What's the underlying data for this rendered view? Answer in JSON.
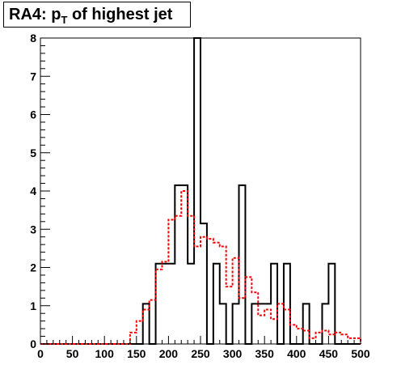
{
  "chart_data": {
    "type": "histogram",
    "title_main": "RA4: p",
    "title_sub": "T",
    "title_rest": " of highest jet",
    "xlim": [
      0,
      500
    ],
    "ylim": [
      0,
      8
    ],
    "xticks": [
      0,
      50,
      100,
      150,
      200,
      250,
      300,
      350,
      400,
      450,
      500
    ],
    "yticks": [
      0,
      1,
      2,
      3,
      4,
      5,
      6,
      7,
      8
    ],
    "bin_width": 10,
    "series": [
      {
        "style": "solid",
        "color": "#000000",
        "values": [
          0,
          0,
          0,
          0,
          0,
          0,
          0,
          0,
          0,
          0,
          0,
          0,
          0,
          0,
          0,
          0,
          1.05,
          0,
          2.1,
          2.1,
          2.1,
          4.15,
          4.15,
          2.1,
          8,
          3.15,
          0,
          2.1,
          1.05,
          0,
          1.05,
          4.15,
          0,
          1.05,
          1.05,
          1.05,
          2.1,
          0,
          2.1,
          0,
          0,
          1.05,
          0,
          0,
          1.05,
          2.1,
          0,
          0,
          0,
          0
        ]
      },
      {
        "style": "dashed",
        "color": "#ff0000",
        "values": [
          0,
          0,
          0,
          0,
          0,
          0,
          0,
          0,
          0,
          0,
          0,
          0,
          0,
          0,
          0.3,
          0.6,
          0.9,
          1.15,
          1.95,
          2.15,
          3.25,
          3.35,
          4.0,
          3.35,
          2.55,
          2.8,
          2.75,
          2.65,
          2.55,
          1.5,
          2.25,
          1.2,
          1.75,
          1.35,
          0.75,
          0.9,
          0.65,
          1.05,
          0.9,
          0.5,
          0.4,
          0.35,
          0.15,
          0.3,
          0.35,
          0.25,
          0.3,
          0.25,
          0.15,
          0.15
        ]
      }
    ]
  }
}
